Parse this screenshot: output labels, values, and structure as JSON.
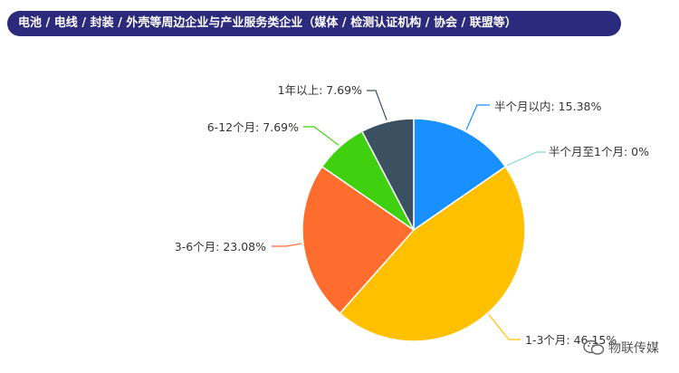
{
  "chart_data": {
    "type": "pie",
    "title": "电池 / 电线 / 封装 / 外壳等周边企业与产业服务类企业（媒体 / 检测认证机构 / 协会 / 联盟等）",
    "slices": [
      {
        "label": "半个月以内",
        "value": 15.38,
        "display": "半个月以内: 15.38%",
        "color": "#1890ff"
      },
      {
        "label": "半个月至1个月",
        "value": 0,
        "display": "半个月至1个月: 0%",
        "color": "#8ed8d8"
      },
      {
        "label": "1-3个月",
        "value": 46.15,
        "display": "1-3个月: 46.15%",
        "color": "#ffc000"
      },
      {
        "label": "3-6个月",
        "value": 23.08,
        "display": "3-6个月: 23.08%",
        "color": "#ff6d2e"
      },
      {
        "label": "6-12个月",
        "value": 7.69,
        "display": "6-12个月: 7.69%",
        "color": "#3fd10f"
      },
      {
        "label": "1年以上",
        "value": 7.69,
        "display": "1年以上: 7.69%",
        "color": "#3b5060"
      }
    ],
    "legend": "none"
  },
  "watermark": {
    "text": "物联传媒",
    "icon": "wechat-icon"
  }
}
